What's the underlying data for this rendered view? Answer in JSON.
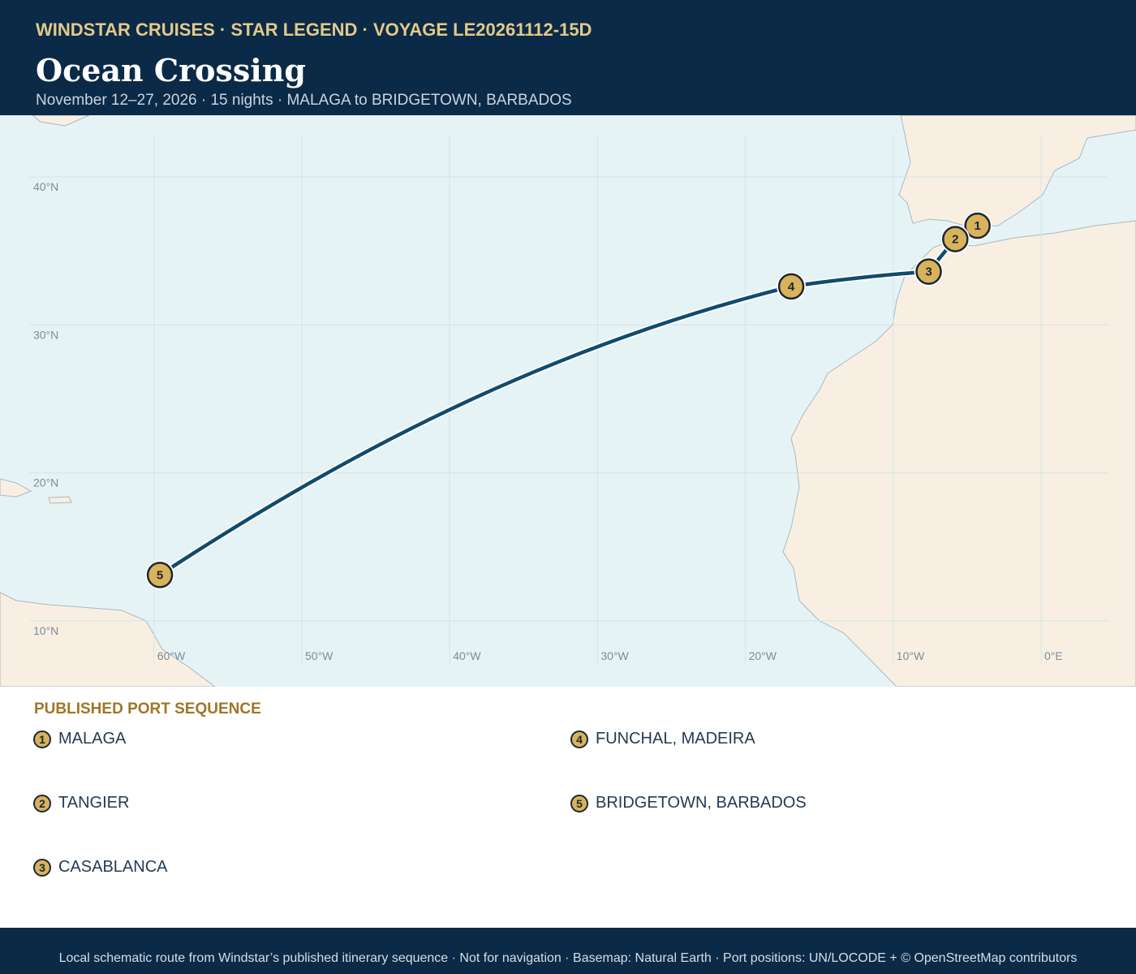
{
  "header": {
    "eyebrow": "WINDSTAR CRUISES · STAR LEGEND · VOYAGE LE20261112-15D",
    "title": "Ocean Crossing",
    "subtitle": "November 12–27, 2026 · 15 nights · MALAGA to BRIDGETOWN, BARBADOS"
  },
  "map": {
    "lat_ticks": [
      {
        "value": 40,
        "label": "40°N"
      },
      {
        "value": 30,
        "label": "30°N"
      },
      {
        "value": 20,
        "label": "20°N"
      },
      {
        "value": 10,
        "label": "10°N"
      }
    ],
    "lon_ticks": [
      {
        "value": -60,
        "label": "60°W"
      },
      {
        "value": -50,
        "label": "50°W"
      },
      {
        "value": -40,
        "label": "40°W"
      },
      {
        "value": -30,
        "label": "30°W"
      },
      {
        "value": -20,
        "label": "20°W"
      },
      {
        "value": -10,
        "label": "10°W"
      },
      {
        "value": 0,
        "label": "0°E"
      }
    ],
    "ports": [
      {
        "number": 1,
        "name": "MALAGA",
        "lon": -4.3,
        "lat": 36.7
      },
      {
        "number": 2,
        "name": "TANGIER",
        "lon": -5.8,
        "lat": 35.8
      },
      {
        "number": 3,
        "name": "CASABLANCA",
        "lon": -7.6,
        "lat": 33.6
      },
      {
        "number": 4,
        "name": "FUNCHAL, MADEIRA",
        "lon": -16.9,
        "lat": 32.6
      },
      {
        "number": 5,
        "name": "BRIDGETOWN, BARBADOS",
        "lon": -59.6,
        "lat": 13.1
      }
    ]
  },
  "legend": {
    "title": "PUBLISHED PORT SEQUENCE"
  },
  "footer": "Local schematic route from Windstar’s published itinerary sequence · Not for navigation · Basemap: Natural Earth · Port positions: UN/LOCODE + © OpenStreetMap contributors"
}
